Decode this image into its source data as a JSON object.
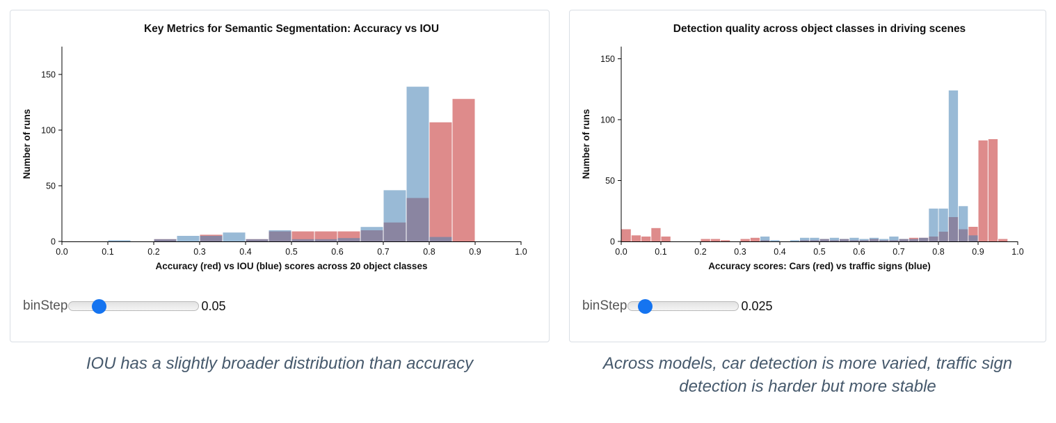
{
  "colors": {
    "panel_border": "#d9dee4",
    "caption_text": "#46596c",
    "slider_thumb": "#1574f0",
    "red_series": "#c94444",
    "blue_series": "#4682b4"
  },
  "panels": [
    {
      "slider": {
        "label": "binStep",
        "value": "0.05"
      },
      "caption": "IOU has a slightly broader distribution than accuracy"
    },
    {
      "slider": {
        "label": "binStep",
        "value": "0.025"
      },
      "caption": "Across models, car detection is more varied, traffic sign detection is harder but more stable"
    }
  ],
  "chart_data": [
    {
      "type": "bar",
      "title": "Key Metrics for Semantic Segmentation: Accuracy vs IOU",
      "xlabel": "Accuracy (red) vs IOU (blue) scores across 20 object classes",
      "ylabel": "Number of runs",
      "xlim": [
        0.0,
        1.0
      ],
      "ylim": [
        0,
        175
      ],
      "xticks": [
        0.0,
        0.1,
        0.2,
        0.3,
        0.4,
        0.5,
        0.6,
        0.7,
        0.8,
        0.9,
        1.0
      ],
      "yticks": [
        0,
        50,
        100,
        150
      ],
      "bin_width": 0.05,
      "grid": false,
      "legend": "none",
      "series": [
        {
          "name": "accuracy-red",
          "color": "#c94444",
          "opacity": 0.62,
          "bins": [
            [
              0.2,
              2
            ],
            [
              0.3,
              6
            ],
            [
              0.4,
              2
            ],
            [
              0.45,
              9
            ],
            [
              0.5,
              9
            ],
            [
              0.55,
              9
            ],
            [
              0.6,
              9
            ],
            [
              0.65,
              10
            ],
            [
              0.7,
              17
            ],
            [
              0.75,
              39
            ],
            [
              0.8,
              107
            ],
            [
              0.85,
              128
            ]
          ]
        },
        {
          "name": "iou-blue",
          "color": "#4682b4",
          "opacity": 0.55,
          "bins": [
            [
              0.1,
              1
            ],
            [
              0.2,
              2
            ],
            [
              0.25,
              5
            ],
            [
              0.3,
              5
            ],
            [
              0.35,
              8
            ],
            [
              0.4,
              2
            ],
            [
              0.45,
              10
            ],
            [
              0.5,
              2
            ],
            [
              0.55,
              2
            ],
            [
              0.6,
              3
            ],
            [
              0.65,
              13
            ],
            [
              0.7,
              46
            ],
            [
              0.75,
              139
            ],
            [
              0.8,
              4
            ]
          ]
        }
      ]
    },
    {
      "type": "bar",
      "title": "Detection quality across object classes in driving scenes",
      "xlabel": "Accuracy scores: Cars (red) vs traffic signs (blue)",
      "ylabel": "Number of runs",
      "xlim": [
        0.0,
        1.0
      ],
      "ylim": [
        0,
        160
      ],
      "xticks": [
        0.0,
        0.1,
        0.2,
        0.3,
        0.4,
        0.5,
        0.6,
        0.7,
        0.8,
        0.9,
        1.0
      ],
      "yticks": [
        0,
        50,
        100,
        150
      ],
      "bin_width": 0.025,
      "grid": false,
      "legend": "none",
      "series": [
        {
          "name": "cars-red",
          "color": "#c94444",
          "opacity": 0.62,
          "bins": [
            [
              0.0,
              10
            ],
            [
              0.025,
              5
            ],
            [
              0.05,
              4
            ],
            [
              0.075,
              11
            ],
            [
              0.1,
              4
            ],
            [
              0.2,
              2
            ],
            [
              0.225,
              2
            ],
            [
              0.25,
              1
            ],
            [
              0.3,
              2
            ],
            [
              0.325,
              3
            ],
            [
              0.35,
              1
            ],
            [
              0.45,
              1
            ],
            [
              0.475,
              1
            ],
            [
              0.5,
              2
            ],
            [
              0.525,
              1
            ],
            [
              0.55,
              2
            ],
            [
              0.575,
              1
            ],
            [
              0.6,
              1
            ],
            [
              0.625,
              2
            ],
            [
              0.65,
              1
            ],
            [
              0.675,
              1
            ],
            [
              0.7,
              2
            ],
            [
              0.725,
              3
            ],
            [
              0.75,
              3
            ],
            [
              0.775,
              4
            ],
            [
              0.8,
              8
            ],
            [
              0.825,
              20
            ],
            [
              0.85,
              10
            ],
            [
              0.875,
              12
            ],
            [
              0.9,
              83
            ],
            [
              0.925,
              84
            ],
            [
              0.95,
              2
            ]
          ]
        },
        {
          "name": "traffic-signs-blue",
          "color": "#4682b4",
          "opacity": 0.55,
          "bins": [
            [
              0.35,
              4
            ],
            [
              0.375,
              1
            ],
            [
              0.425,
              1
            ],
            [
              0.45,
              3
            ],
            [
              0.475,
              3
            ],
            [
              0.5,
              2
            ],
            [
              0.525,
              3
            ],
            [
              0.55,
              2
            ],
            [
              0.575,
              3
            ],
            [
              0.6,
              2
            ],
            [
              0.625,
              3
            ],
            [
              0.65,
              2
            ],
            [
              0.675,
              4
            ],
            [
              0.7,
              2
            ],
            [
              0.725,
              2
            ],
            [
              0.75,
              3
            ],
            [
              0.775,
              27
            ],
            [
              0.8,
              27
            ],
            [
              0.825,
              124
            ],
            [
              0.85,
              29
            ],
            [
              0.875,
              5
            ]
          ]
        }
      ]
    }
  ]
}
